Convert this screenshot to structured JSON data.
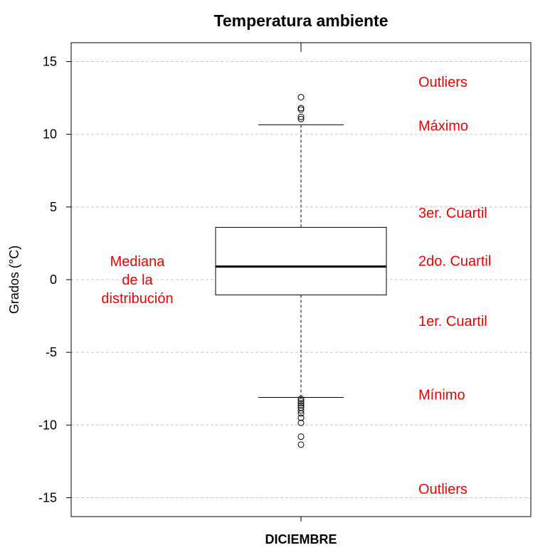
{
  "chart_data": {
    "type": "box",
    "title": "Temperatura ambiente",
    "xlabel": "DICIEMBRE",
    "ylabel": "Grados (°C)",
    "ylim": [
      -16.3,
      16.3
    ],
    "yticks": [
      15,
      10,
      5,
      0,
      -5,
      -10,
      -15
    ],
    "ytick_labels": [
      "15",
      "10",
      "5",
      "0",
      "-5",
      "-10",
      "-15"
    ],
    "grid": true,
    "box": {
      "category": "DICIEMBRE",
      "whisker_low": -8.1,
      "q1": -1.05,
      "median": 0.9,
      "q3": 3.6,
      "whisker_high": 10.65,
      "outliers_high": [
        11.05,
        11.2,
        11.7,
        11.8,
        12.55
      ],
      "outliers_low": [
        -8.2,
        -8.35,
        -8.5,
        -8.65,
        -8.8,
        -9.0,
        -9.2,
        -9.5,
        -9.85,
        -10.8,
        -11.35
      ]
    },
    "annotations": [
      {
        "id": "outliers-top",
        "lines": [
          "Outliers"
        ],
        "y": 13.6,
        "side": "right"
      },
      {
        "id": "maximo",
        "lines": [
          "Máximo"
        ],
        "y": 10.6,
        "side": "right"
      },
      {
        "id": "tercer-cuartil",
        "lines": [
          "3er. Cuartil"
        ],
        "y": 4.6,
        "side": "right"
      },
      {
        "id": "segundo-cuartil",
        "lines": [
          "2do. Cuartil"
        ],
        "y": 1.3,
        "side": "right"
      },
      {
        "id": "primer-cuartil",
        "lines": [
          "1er. Cuartil"
        ],
        "y": -2.85,
        "side": "right"
      },
      {
        "id": "minimo",
        "lines": [
          "Mínimo"
        ],
        "y": -7.9,
        "side": "right"
      },
      {
        "id": "outliers-bottom",
        "lines": [
          "Outliers"
        ],
        "y": -14.4,
        "side": "right"
      },
      {
        "id": "mediana",
        "lines": [
          "Mediana",
          "de la",
          "distribución"
        ],
        "y": 0.0,
        "side": "left"
      }
    ]
  }
}
